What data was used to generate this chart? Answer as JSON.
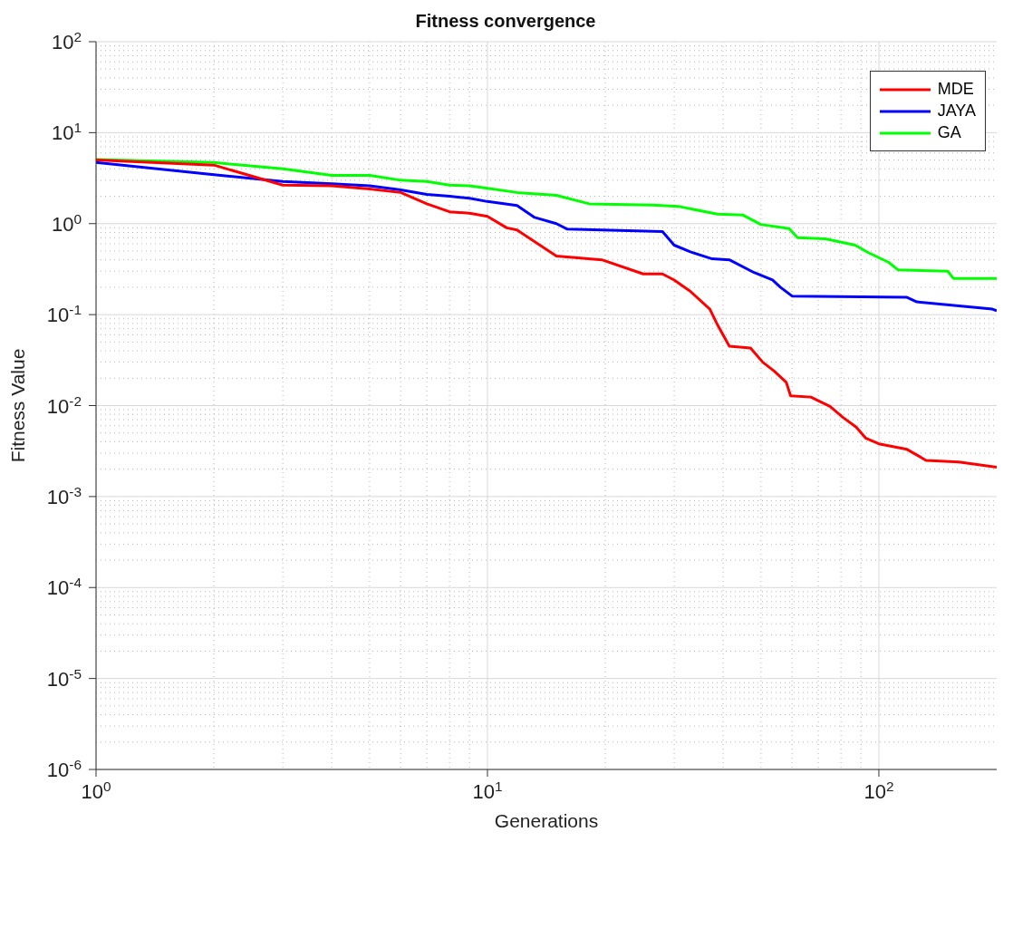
{
  "chart_data": {
    "type": "line",
    "title": "Fitness convergence",
    "xlabel": "Generations",
    "ylabel": "Fitness Value",
    "log": "xy",
    "grid": true,
    "legend": "top right",
    "marker": "none",
    "line_style": "solid",
    "xlim": [
      1,
      200
    ],
    "xticks": [
      {
        "value": 1,
        "label": "10$^{0}$"
      },
      {
        "value": 10,
        "label": "10$^{1}$"
      },
      {
        "value": 100,
        "label": "10$^{2}$"
      }
    ],
    "ylim": [
      1e-06,
      100
    ],
    "yticks": [
      {
        "value": 1e-06,
        "label": "10$^{-6}$"
      },
      {
        "value": 1e-05,
        "label": "10$^{-5}$"
      },
      {
        "value": 0.0001,
        "label": "10$^{-4}$"
      },
      {
        "value": 0.001,
        "label": "10$^{-3}$"
      },
      {
        "value": 0.01,
        "label": "10$^{-2}$"
      },
      {
        "value": 0.1,
        "label": "10$^{-1}$"
      },
      {
        "value": 1,
        "label": "10$^{0}$"
      },
      {
        "value": 10,
        "label": "10$^{1}$"
      },
      {
        "value": 100,
        "label": "10$^{2}$"
      }
    ],
    "series": [
      {
        "name": "MDE",
        "color": "#ff0000",
        "x": [
          1,
          2,
          3,
          4,
          5,
          6,
          7,
          8,
          9,
          10,
          11.2,
          11.9,
          15,
          19.6,
          25,
          28,
          30,
          33,
          37,
          38.6,
          41.5,
          47,
          50.5,
          54,
          58,
          59.5,
          67,
          75,
          81,
          87.5,
          92.5,
          100,
          118,
          132,
          160,
          200
        ],
        "values": [
          5.0,
          4.4,
          2.65,
          2.6,
          2.4,
          2.2,
          1.65,
          1.35,
          1.3,
          1.2,
          0.9,
          0.85,
          0.44,
          0.4,
          0.28,
          0.28,
          0.24,
          0.18,
          0.115,
          0.079,
          0.045,
          0.043,
          0.03,
          0.024,
          0.018,
          0.0128,
          0.0124,
          0.0098,
          0.0074,
          0.0058,
          0.0044,
          0.0038,
          0.0033,
          0.0025,
          0.0024,
          0.0021
        ]
      },
      {
        "name": "JAYA",
        "color": "#0000ff",
        "x": [
          1,
          2,
          3,
          4,
          5,
          6,
          7,
          8,
          9,
          10,
          11.9,
          13.2,
          15,
          16,
          28,
          30,
          33,
          37.5,
          41.5,
          48,
          53.5,
          56,
          60,
          118,
          125,
          195,
          200
        ],
        "values": [
          4.7,
          3.45,
          2.9,
          2.75,
          2.6,
          2.35,
          2.1,
          2.0,
          1.9,
          1.75,
          1.58,
          1.17,
          1.0,
          0.87,
          0.82,
          0.58,
          0.49,
          0.41,
          0.4,
          0.29,
          0.24,
          0.2,
          0.16,
          0.155,
          0.138,
          0.115,
          0.11
        ]
      },
      {
        "name": "GA",
        "color": "#00ff00",
        "x": [
          1,
          2,
          3,
          4,
          5,
          6,
          7,
          8,
          9,
          10,
          11.9,
          15,
          18.2,
          26.4,
          30.7,
          38.7,
          45,
          49.9,
          59,
          62,
          73,
          87,
          94,
          106,
          112,
          150,
          155,
          200
        ],
        "values": [
          5.06,
          4.7,
          4.0,
          3.4,
          3.4,
          3.0,
          2.9,
          2.65,
          2.6,
          2.45,
          2.2,
          2.05,
          1.65,
          1.6,
          1.55,
          1.27,
          1.24,
          0.98,
          0.88,
          0.7,
          0.68,
          0.58,
          0.48,
          0.375,
          0.31,
          0.3,
          0.25,
          0.25
        ]
      }
    ]
  }
}
